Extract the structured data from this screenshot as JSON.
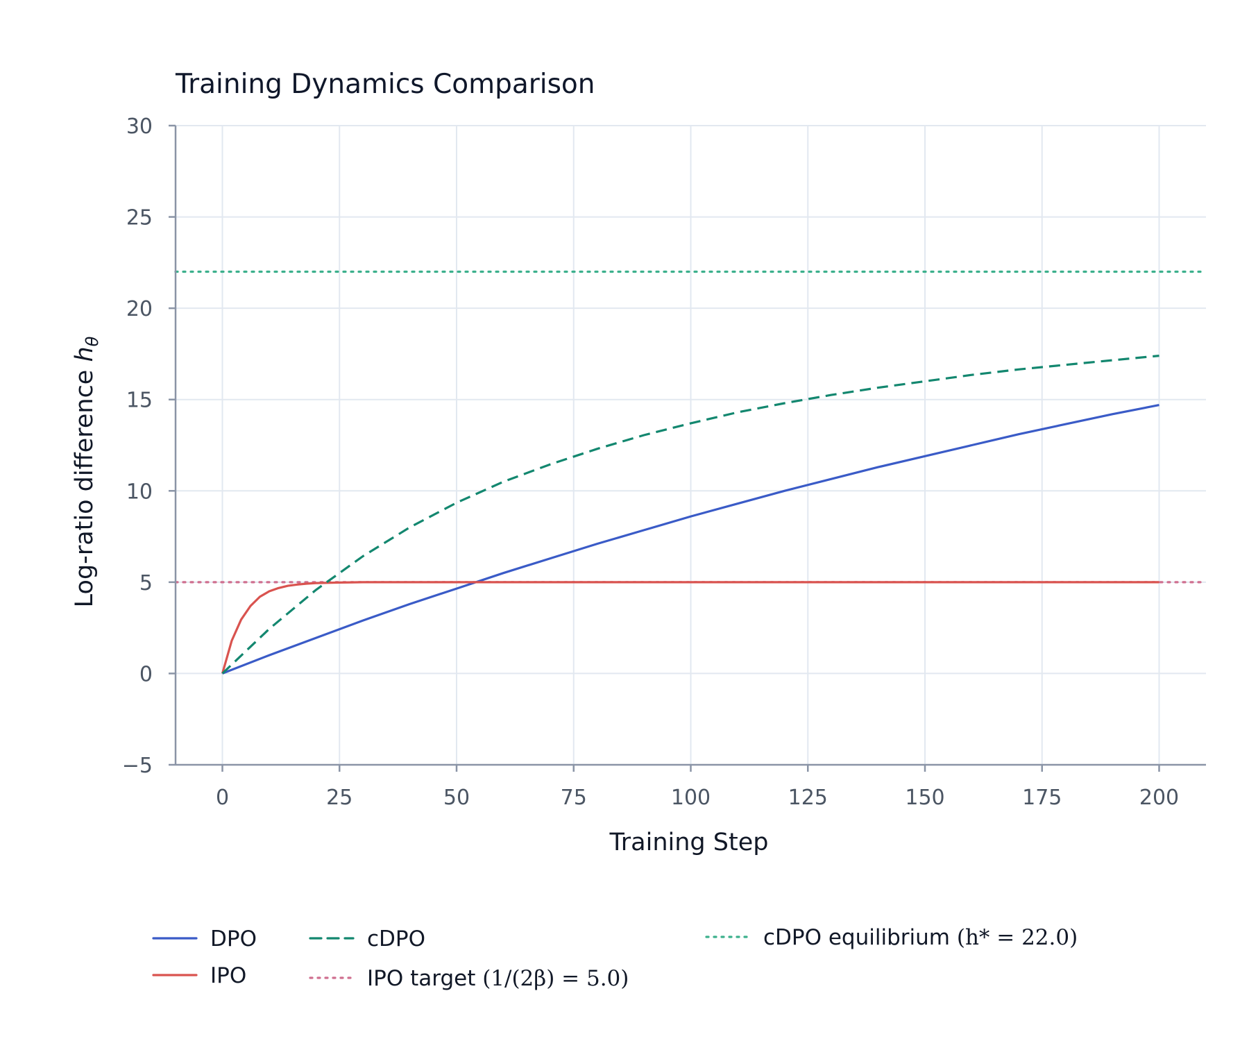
{
  "chart_data": {
    "type": "line",
    "title": "Training Dynamics Comparison",
    "xlabel": "Training Step",
    "ylabel_prefix": "Log-ratio difference ",
    "ylabel_math": "h",
    "ylabel_sub": "θ",
    "xlim": [
      -10,
      210
    ],
    "ylim": [
      -5,
      30
    ],
    "xticks": [
      0,
      25,
      50,
      75,
      100,
      125,
      150,
      175,
      200
    ],
    "yticks": [
      -5,
      0,
      5,
      10,
      15,
      20,
      25,
      30
    ],
    "grid": true,
    "legend_position": "bottom",
    "series": [
      {
        "key": "dpo",
        "name": "DPO",
        "color": "#3a5bc7",
        "style": "solid",
        "x": [
          0,
          10,
          20,
          30,
          40,
          50,
          60,
          70,
          80,
          90,
          100,
          110,
          120,
          130,
          140,
          150,
          160,
          170,
          180,
          190,
          200
        ],
        "y": [
          0,
          1.0,
          1.95,
          2.9,
          3.8,
          4.65,
          5.5,
          6.3,
          7.1,
          7.85,
          8.6,
          9.3,
          10.0,
          10.65,
          11.3,
          11.9,
          12.5,
          13.1,
          13.65,
          14.2,
          14.7
        ]
      },
      {
        "key": "ipo",
        "name": "IPO",
        "color": "#d9534f",
        "style": "solid",
        "x": [
          0,
          2,
          4,
          6,
          8,
          10,
          12,
          14,
          16,
          18,
          20,
          25,
          30,
          40,
          60,
          100,
          150,
          200
        ],
        "y": [
          0,
          1.8,
          2.95,
          3.7,
          4.2,
          4.5,
          4.68,
          4.8,
          4.87,
          4.92,
          4.95,
          4.98,
          5.0,
          5.0,
          5.0,
          5.0,
          5.0,
          5.0
        ]
      },
      {
        "key": "cdpo",
        "name": "cDPO",
        "color": "#13876f",
        "style": "dashed",
        "x": [
          0,
          10,
          20,
          30,
          40,
          50,
          60,
          70,
          80,
          90,
          100,
          110,
          120,
          130,
          140,
          150,
          160,
          170,
          180,
          190,
          200
        ],
        "y": [
          0,
          2.44,
          4.58,
          6.42,
          8.0,
          9.35,
          10.5,
          11.45,
          12.3,
          13.05,
          13.7,
          14.3,
          14.8,
          15.25,
          15.65,
          16.0,
          16.35,
          16.65,
          16.9,
          17.15,
          17.4
        ]
      },
      {
        "key": "ipo_target",
        "name": "IPO target ",
        "math": "(1/(2β) = 5.0)",
        "color": "#cf6f8f",
        "style": "dotted",
        "hline": 5.0
      },
      {
        "key": "cdpo_eq",
        "name": "cDPO equilibrium ",
        "math": "(h* = 22.0)",
        "color": "#3cb08c",
        "style": "dotted",
        "hline": 22.0
      }
    ]
  }
}
